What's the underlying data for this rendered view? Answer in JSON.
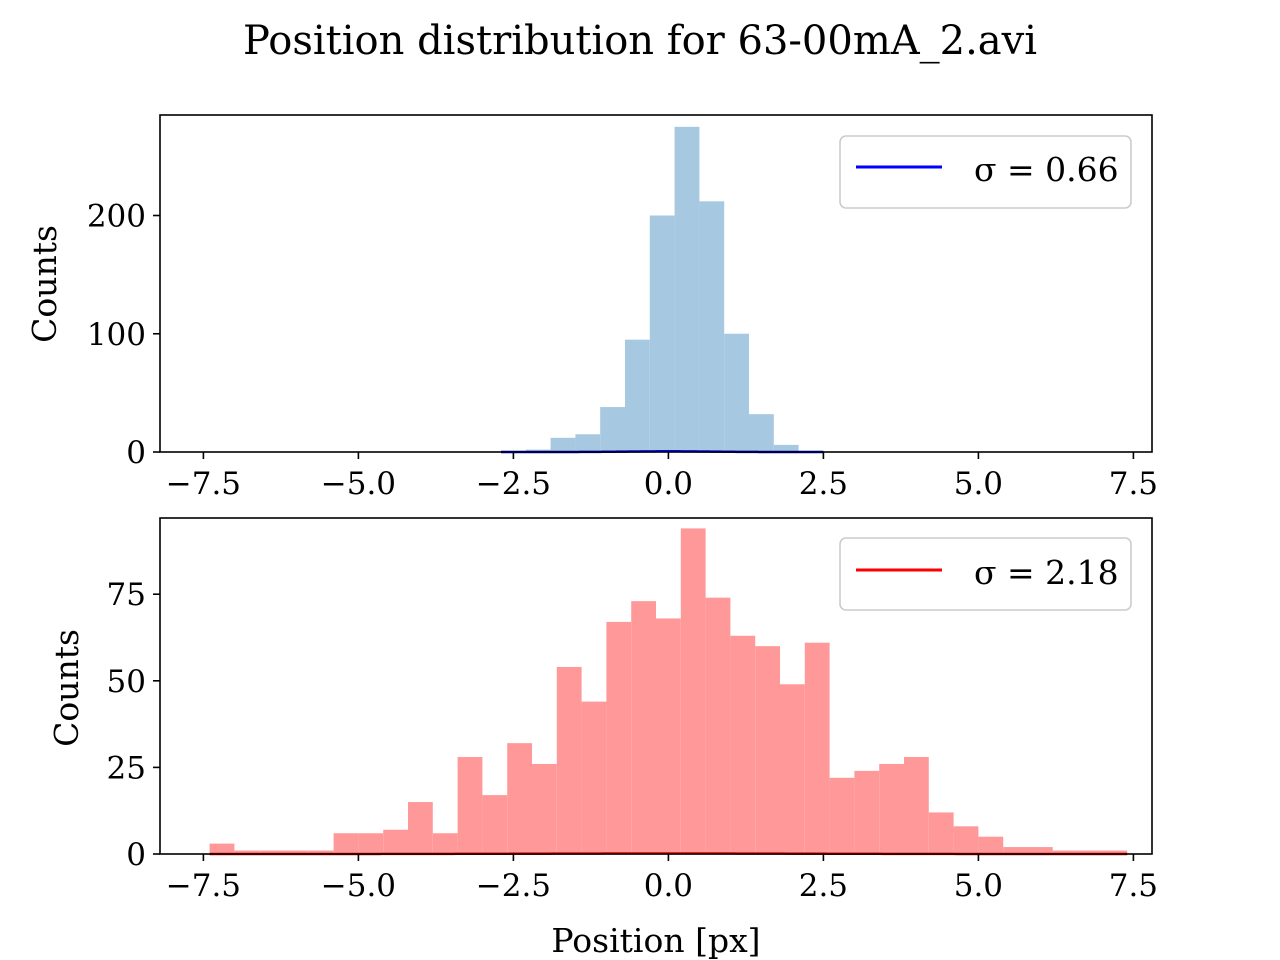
{
  "figure": {
    "title": "Position distribution for 63-00mA_2.avi"
  },
  "chart_data": [
    {
      "type": "bar",
      "subtype": "histogram",
      "title": "",
      "xlabel": "",
      "ylabel": "Counts",
      "xlim": [
        -8.2,
        7.8
      ],
      "ylim": [
        0,
        285
      ],
      "xticks": [
        -7.5,
        -5.0,
        -2.5,
        0.0,
        2.5,
        5.0,
        7.5
      ],
      "xtick_labels": [
        "−7.5",
        "−5.0",
        "−2.5",
        "0.0",
        "2.5",
        "5.0",
        "7.5"
      ],
      "yticks": [
        0,
        100,
        200
      ],
      "ytick_labels": [
        "0",
        "100",
        "200"
      ],
      "grid": false,
      "legend_position": "upper-right",
      "bin_width": 0.4,
      "bin_start": -2.7,
      "bar_color": "#a6c8e0",
      "counts": [
        1,
        2,
        12,
        15,
        38,
        95,
        200,
        275,
        212,
        100,
        32,
        6,
        1
      ],
      "series": [
        {
          "name": "σ = 0.66",
          "color": "#0000ff",
          "sigma": 0.66
        }
      ]
    },
    {
      "type": "bar",
      "subtype": "histogram",
      "title": "",
      "xlabel": "Position [px]",
      "ylabel": "Counts",
      "xlim": [
        -8.2,
        7.8
      ],
      "ylim": [
        0,
        97
      ],
      "xticks": [
        -7.5,
        -5.0,
        -2.5,
        0.0,
        2.5,
        5.0,
        7.5
      ],
      "xtick_labels": [
        "−7.5",
        "−5.0",
        "−2.5",
        "0.0",
        "2.5",
        "5.0",
        "7.5"
      ],
      "yticks": [
        0,
        25,
        50,
        75
      ],
      "ytick_labels": [
        "0",
        "25",
        "50",
        "75"
      ],
      "grid": false,
      "legend_position": "upper-right",
      "bin_width": 0.4,
      "bin_start": -7.4,
      "bar_color": "#ff9999",
      "counts": [
        3,
        1,
        1,
        1,
        1,
        6,
        6,
        7,
        15,
        6,
        28,
        17,
        32,
        26,
        54,
        44,
        67,
        73,
        68,
        94,
        74,
        63,
        60,
        49,
        61,
        22,
        24,
        26,
        28,
        12,
        8,
        5,
        2,
        2,
        1,
        1,
        1
      ],
      "series": [
        {
          "name": "σ = 2.18",
          "color": "#ff0000",
          "sigma": 2.18
        }
      ]
    }
  ]
}
